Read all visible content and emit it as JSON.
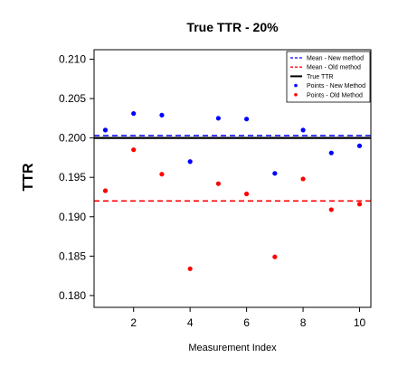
{
  "chart_data": {
    "type": "scatter",
    "title": "True TTR - 20%",
    "xlabel": "Measurement Index",
    "ylabel": "TTR",
    "xlim": [
      0.6,
      10.4
    ],
    "ylim": [
      0.1785,
      0.2112
    ],
    "x_ticks": [
      2,
      4,
      6,
      8,
      10
    ],
    "x_tick_labels": [
      "2",
      "4",
      "6",
      "8",
      "10"
    ],
    "y_ticks": [
      0.18,
      0.185,
      0.19,
      0.195,
      0.2,
      0.205,
      0.21
    ],
    "y_tick_labels": [
      "0.180",
      "0.185",
      "0.190",
      "0.195",
      "0.200",
      "0.205",
      "0.210"
    ],
    "grid": false,
    "legend_position": "top-right",
    "legend": [
      {
        "label": "Mean - New method",
        "style": "dashed-line",
        "color": "#0000ff"
      },
      {
        "label": "Mean - Old method",
        "style": "dashed-line",
        "color": "#ff0000"
      },
      {
        "label": "True TTR",
        "style": "solid-line",
        "color": "#000000"
      },
      {
        "label": "Points - New Method",
        "style": "point",
        "color": "#0000ff"
      },
      {
        "label": "Points - Old Method",
        "style": "point",
        "color": "#ff0000"
      }
    ],
    "hlines": [
      {
        "name": "Mean - New method",
        "y": 0.2003,
        "color": "#0000ff",
        "dash": true
      },
      {
        "name": "Mean - Old method",
        "y": 0.192,
        "color": "#ff0000",
        "dash": true
      },
      {
        "name": "True TTR",
        "y": 0.2,
        "color": "#000000",
        "dash": false
      }
    ],
    "series": [
      {
        "name": "Points - New Method",
        "color": "#0000ff",
        "x": [
          1,
          2,
          3,
          4,
          5,
          6,
          7,
          8,
          9,
          10
        ],
        "y": [
          0.201,
          0.2031,
          0.2029,
          0.197,
          0.2025,
          0.2024,
          0.1955,
          0.201,
          0.1981,
          0.199
        ]
      },
      {
        "name": "Points - Old Method",
        "color": "#ff0000",
        "x": [
          1,
          2,
          3,
          4,
          5,
          6,
          7,
          8,
          9,
          10
        ],
        "y": [
          0.1933,
          0.1985,
          0.1954,
          0.1834,
          0.1942,
          0.1929,
          0.1849,
          0.1948,
          0.1909,
          0.1916
        ]
      }
    ]
  }
}
